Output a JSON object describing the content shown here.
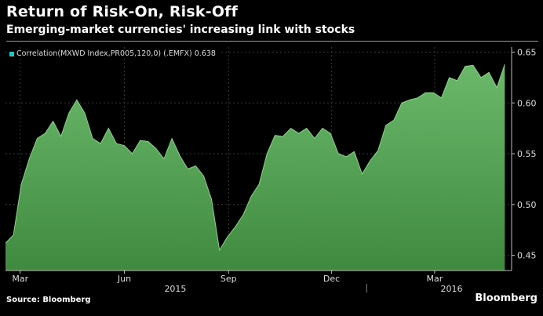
{
  "header": {
    "title": "Return of Risk-On, Risk-Off",
    "subtitle": "Emerging-market currencies' increasing link with stocks"
  },
  "footer": {
    "source": "Source: Bloomberg",
    "brand": "Bloomberg"
  },
  "chart_data": {
    "type": "area",
    "series": [
      {
        "name": "Correlation(MXWD Index,PR005,120,0) (.EMFX)",
        "last_value_label": "0.638",
        "color": "#5dab5d",
        "legend_color": "#27c4c4",
        "x": [
          "2015-02-16",
          "2015-02-23",
          "2015-03-02",
          "2015-03-09",
          "2015-03-16",
          "2015-03-23",
          "2015-03-30",
          "2015-04-06",
          "2015-04-13",
          "2015-04-20",
          "2015-04-27",
          "2015-05-04",
          "2015-05-11",
          "2015-05-18",
          "2015-05-25",
          "2015-06-01",
          "2015-06-08",
          "2015-06-15",
          "2015-06-22",
          "2015-06-29",
          "2015-07-06",
          "2015-07-13",
          "2015-07-20",
          "2015-07-27",
          "2015-08-03",
          "2015-08-10",
          "2015-08-17",
          "2015-08-24",
          "2015-08-31",
          "2015-09-07",
          "2015-09-14",
          "2015-09-21",
          "2015-09-28",
          "2015-10-05",
          "2015-10-12",
          "2015-10-19",
          "2015-10-26",
          "2015-11-02",
          "2015-11-09",
          "2015-11-16",
          "2015-11-23",
          "2015-11-30",
          "2015-12-07",
          "2015-12-14",
          "2015-12-21",
          "2015-12-28",
          "2016-01-04",
          "2016-01-11",
          "2016-01-18",
          "2016-01-25",
          "2016-02-01",
          "2016-02-08",
          "2016-02-15",
          "2016-02-22",
          "2016-02-29",
          "2016-03-07",
          "2016-03-14",
          "2016-03-21",
          "2016-03-28",
          "2016-04-04",
          "2016-04-11",
          "2016-04-18",
          "2016-04-25",
          "2016-05-02"
        ],
        "y": [
          0.462,
          0.47,
          0.52,
          0.545,
          0.565,
          0.57,
          0.582,
          0.567,
          0.59,
          0.603,
          0.59,
          0.565,
          0.56,
          0.575,
          0.56,
          0.558,
          0.55,
          0.563,
          0.562,
          0.555,
          0.545,
          0.565,
          0.548,
          0.535,
          0.538,
          0.528,
          0.505,
          0.455,
          0.468,
          0.478,
          0.49,
          0.508,
          0.52,
          0.55,
          0.568,
          0.567,
          0.575,
          0.57,
          0.575,
          0.565,
          0.575,
          0.57,
          0.55,
          0.547,
          0.552,
          0.53,
          0.543,
          0.553,
          0.578,
          0.583,
          0.6,
          0.603,
          0.605,
          0.61,
          0.61,
          0.605,
          0.625,
          0.622,
          0.636,
          0.637,
          0.625,
          0.63,
          0.615,
          0.638
        ]
      }
    ],
    "x_tick_labels": [
      "Mar",
      "Jun",
      "Sep",
      "Dec",
      "Mar"
    ],
    "x_tick_dates": [
      "2015-03-01",
      "2015-06-01",
      "2015-09-01",
      "2015-12-01",
      "2016-03-01"
    ],
    "year_labels": [
      "2015",
      "2016"
    ],
    "year_label_dates": [
      "2015-07-16",
      "2016-03-16"
    ],
    "x_range": [
      "2015-02-16",
      "2016-05-08"
    ],
    "y_ticks": [
      "0.45",
      "0.50",
      "0.55",
      "0.60",
      "0.65"
    ],
    "ylim": [
      0.435,
      0.655
    ],
    "grid": true,
    "legend_position": "top-left",
    "xlabel": "",
    "ylabel": ""
  }
}
